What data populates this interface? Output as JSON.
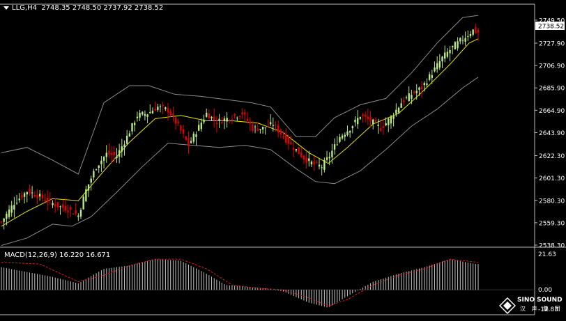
{
  "header": {
    "symbol": "LLG,H4",
    "ohlc": "2748.35 2748.50 2737.92 2738.52"
  },
  "macd": {
    "label": "MACD(12,26,9) 16.220 16.671",
    "max_label": "21.63",
    "zero_label": "0.00",
    "min_label": "-12.83"
  },
  "colors": {
    "background": "#000000",
    "bull_candle": "#b8e986",
    "bear_candle": "#e00000",
    "ma_line": "#e6e600",
    "bands": "#8c8c8c",
    "macd_signal": "#d02020",
    "macd_histogram": "#c8c8c8",
    "current_price_box": "#ffffff"
  },
  "logo": {
    "brand": "SINO SOUND",
    "sub": "汉 声 集 团"
  },
  "chart_data": [
    {
      "type": "candlestick",
      "title": "",
      "symbol": "LLG",
      "timeframe": "H4",
      "ylim": [
        2538.3,
        2756.0
      ],
      "y_ticks": [
        "2749.50",
        "2727.90",
        "2706.90",
        "2685.90",
        "2664.90",
        "2643.90",
        "2622.30",
        "2601.30",
        "2580.30",
        "2559.30",
        "2538.30"
      ],
      "current_price": "2738.52",
      "overlays": [
        "bollinger_upper",
        "bollinger_lower",
        "moving_average"
      ],
      "close_path": [
        [
          0,
          2560
        ],
        [
          10,
          2578
        ],
        [
          20,
          2589
        ],
        [
          28,
          2585
        ],
        [
          36,
          2580
        ],
        [
          44,
          2575
        ],
        [
          52,
          2572
        ],
        [
          60,
          2566
        ],
        [
          66,
          2590
        ],
        [
          74,
          2612
        ],
        [
          82,
          2624
        ],
        [
          90,
          2622
        ],
        [
          98,
          2640
        ],
        [
          106,
          2660
        ],
        [
          114,
          2662
        ],
        [
          122,
          2668
        ],
        [
          130,
          2665
        ],
        [
          138,
          2650
        ],
        [
          146,
          2632
        ],
        [
          152,
          2645
        ],
        [
          160,
          2662
        ],
        [
          168,
          2654
        ],
        [
          178,
          2658
        ],
        [
          188,
          2662
        ],
        [
          196,
          2648
        ],
        [
          204,
          2648
        ],
        [
          212,
          2652
        ],
        [
          220,
          2640
        ],
        [
          228,
          2630
        ],
        [
          236,
          2620
        ],
        [
          244,
          2614
        ],
        [
          250,
          2612
        ],
        [
          256,
          2622
        ],
        [
          264,
          2640
        ],
        [
          272,
          2648
        ],
        [
          280,
          2660
        ],
        [
          288,
          2655
        ],
        [
          296,
          2648
        ],
        [
          304,
          2658
        ],
        [
          312,
          2672
        ],
        [
          320,
          2680
        ],
        [
          328,
          2686
        ],
        [
          336,
          2700
        ],
        [
          344,
          2714
        ],
        [
          352,
          2724
        ],
        [
          360,
          2732
        ],
        [
          368,
          2740
        ],
        [
          372,
          2738
        ]
      ],
      "bb_upper": [
        [
          0,
          2625
        ],
        [
          20,
          2630
        ],
        [
          40,
          2618
        ],
        [
          60,
          2605
        ],
        [
          80,
          2672
        ],
        [
          100,
          2688
        ],
        [
          115,
          2688
        ],
        [
          135,
          2680
        ],
        [
          155,
          2678
        ],
        [
          175,
          2675
        ],
        [
          195,
          2672
        ],
        [
          210,
          2668
        ],
        [
          230,
          2640
        ],
        [
          245,
          2640
        ],
        [
          260,
          2658
        ],
        [
          280,
          2670
        ],
        [
          300,
          2676
        ],
        [
          320,
          2700
        ],
        [
          340,
          2728
        ],
        [
          360,
          2752
        ],
        [
          372,
          2754
        ]
      ],
      "bb_lower": [
        [
          0,
          2538
        ],
        [
          20,
          2545
        ],
        [
          40,
          2558
        ],
        [
          55,
          2556
        ],
        [
          70,
          2565
        ],
        [
          90,
          2588
        ],
        [
          110,
          2612
        ],
        [
          130,
          2634
        ],
        [
          150,
          2632
        ],
        [
          170,
          2630
        ],
        [
          190,
          2632
        ],
        [
          210,
          2628
        ],
        [
          230,
          2610
        ],
        [
          245,
          2598
        ],
        [
          260,
          2596
        ],
        [
          280,
          2608
        ],
        [
          300,
          2628
        ],
        [
          320,
          2650
        ],
        [
          340,
          2666
        ],
        [
          360,
          2686
        ],
        [
          372,
          2696
        ]
      ],
      "ma": [
        [
          0,
          2556
        ],
        [
          20,
          2570
        ],
        [
          40,
          2582
        ],
        [
          60,
          2580
        ],
        [
          80,
          2608
        ],
        [
          100,
          2635
        ],
        [
          120,
          2657
        ],
        [
          140,
          2660
        ],
        [
          160,
          2655
        ],
        [
          180,
          2655
        ],
        [
          200,
          2653
        ],
        [
          220,
          2644
        ],
        [
          240,
          2625
        ],
        [
          255,
          2615
        ],
        [
          270,
          2630
        ],
        [
          290,
          2652
        ],
        [
          310,
          2662
        ],
        [
          330,
          2684
        ],
        [
          350,
          2708
        ],
        [
          365,
          2728
        ],
        [
          372,
          2732
        ]
      ]
    },
    {
      "type": "bar",
      "title": "",
      "indicator": "MACD(12,26,9)",
      "ylim": [
        -12.83,
        21.63
      ],
      "y_ticks": [
        "21.63",
        "0.00",
        "-12.83"
      ],
      "series": [
        {
          "name": "histogram",
          "x": [
            0,
            40,
            60,
            80,
            100,
            120,
            140,
            160,
            175,
            190,
            205,
            220,
            240,
            255,
            270,
            290,
            310,
            330,
            350,
            370
          ],
          "values": [
            14,
            8,
            4,
            13,
            15,
            19,
            18,
            10,
            3,
            2,
            1,
            -1,
            -8,
            -11,
            -4,
            5,
            10,
            14,
            19,
            16
          ]
        },
        {
          "name": "signal",
          "x": [
            0,
            30,
            60,
            80,
            100,
            120,
            140,
            160,
            180,
            200,
            220,
            240,
            255,
            270,
            290,
            310,
            330,
            350,
            372
          ],
          "values": [
            17,
            16,
            5,
            9,
            15,
            19,
            19,
            13,
            3,
            1,
            0,
            -5,
            -10,
            -6,
            3,
            9,
            13,
            19,
            17
          ]
        }
      ]
    }
  ]
}
